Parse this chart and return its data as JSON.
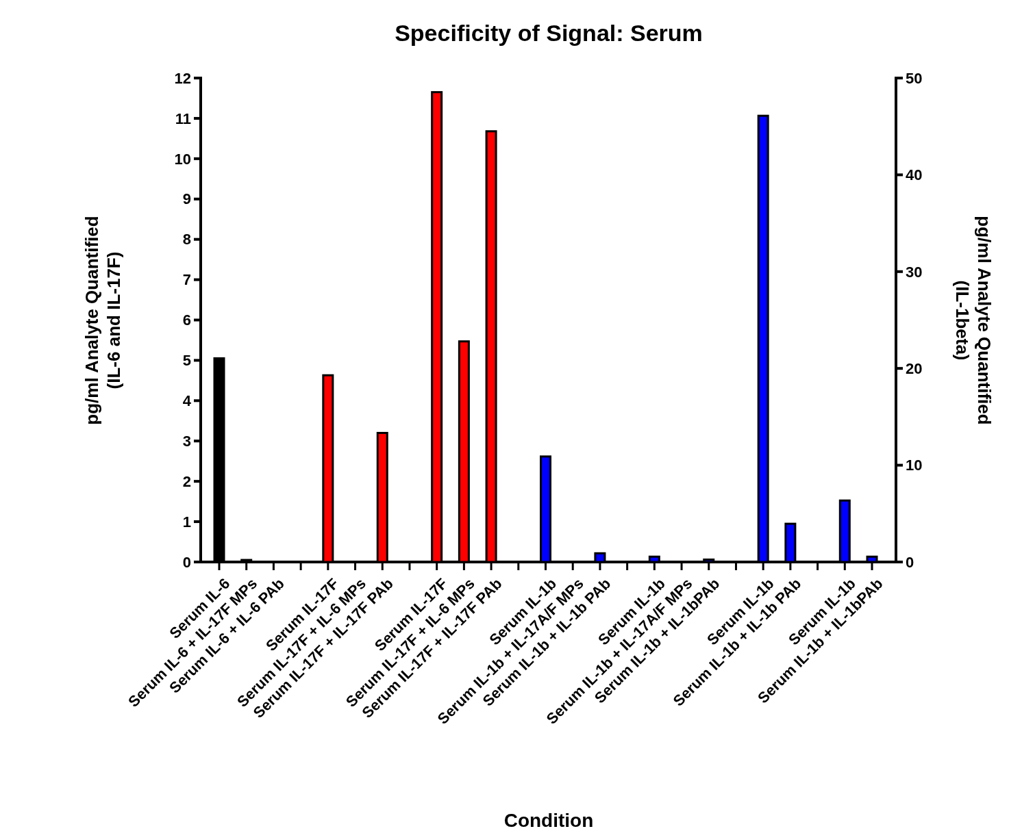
{
  "chart_data": {
    "type": "bar",
    "title": "Specificity of Signal:  Serum",
    "xlabel": "Condition",
    "ylabel": "pg/ml Analyte Quantified\n(IL-6 and IL-17F)",
    "y2label": "pg/ml Analyte Quantified\n(IL-1beta)",
    "categories": [
      "Serum IL-6",
      "Serum IL-6  + IL-17F MPs",
      "Serum IL-6 + IL-6 PAb",
      null,
      "Serum IL-17F",
      "Serum IL-17F + IL-6 MPs",
      "Serum IL-17F + IL-17F PAb",
      null,
      "Serum IL-17F",
      "Serum IL-17F + IL-6 MPs",
      "Serum IL-17F + IL-17F PAb",
      null,
      "Serum IL-1b",
      "Serum IL-1b + IL-17A/F MPs",
      "Serum IL-1b + IL-1b PAb",
      null,
      "Serum IL-1b",
      "Serum IL-1b + IL-17A/F MPs",
      "Serum IL-1b + IL-1bPAb",
      null,
      "Serum IL-1b",
      "Serum IL-1b + IL-1b PAb",
      null,
      "Serum IL-1b",
      "Serum IL-1b + IL-1bPAb"
    ],
    "series": [
      {
        "color": "#000000",
        "values": [
          5.05,
          0.05,
          0,
          null,
          null,
          null,
          null,
          null,
          null,
          null,
          null,
          null,
          null,
          null,
          null,
          null,
          null,
          null,
          null,
          null,
          null,
          null,
          null,
          null,
          null
        ]
      },
      {
        "color": "#ff0000",
        "values": [
          null,
          null,
          null,
          null,
          4.63,
          0,
          3.2,
          null,
          11.65,
          5.47,
          10.68,
          null,
          null,
          null,
          null,
          null,
          null,
          null,
          null,
          null,
          null,
          null,
          null,
          null,
          null
        ]
      },
      {
        "color": "#0000ff",
        "axis": "y2",
        "values": [
          null,
          null,
          null,
          null,
          null,
          null,
          null,
          null,
          null,
          null,
          null,
          null,
          10.9,
          0,
          0.9,
          null,
          0.55,
          0,
          0.25,
          null,
          46.1,
          3.95,
          null,
          6.35,
          0.55
        ]
      }
    ],
    "ylim": [
      0,
      12
    ],
    "yticks": [
      0,
      1,
      2,
      3,
      4,
      5,
      6,
      7,
      8,
      9,
      10,
      11,
      12
    ],
    "y2lim": [
      0,
      50
    ],
    "y2ticks": [
      0,
      10,
      20,
      30,
      40,
      50
    ],
    "grid": false
  }
}
